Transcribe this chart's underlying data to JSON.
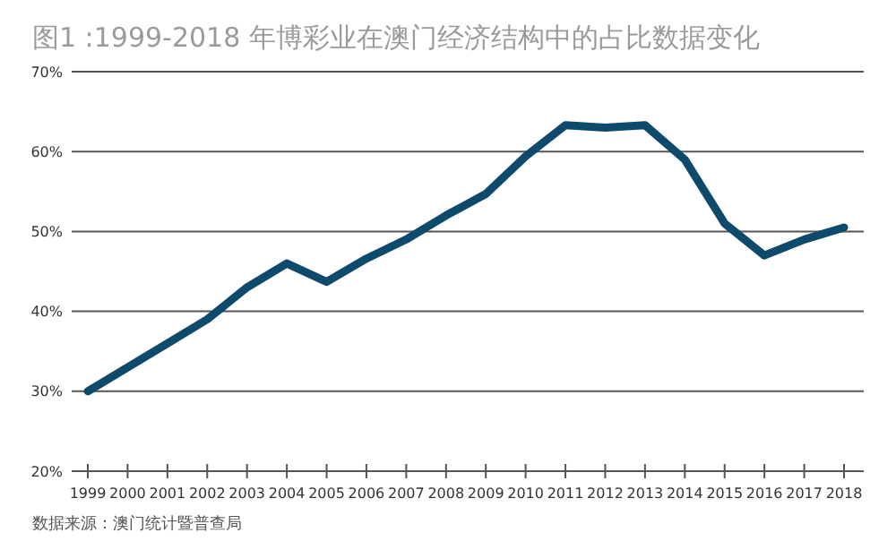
{
  "chart_data": {
    "type": "line",
    "title": "图1 :1999-2018 年博彩业在澳门经济结构中的占比数据变化",
    "categories": [
      "1999",
      "2000",
      "2001",
      "2002",
      "2003",
      "2004",
      "2005",
      "2006",
      "2007",
      "2008",
      "2009",
      "2010",
      "2011",
      "2012",
      "2013",
      "2014",
      "2015",
      "2016",
      "2017",
      "2018"
    ],
    "series": [
      {
        "color": "#0e4a6b",
        "values": [
          30,
          33,
          36,
          39,
          43,
          46,
          43.7,
          46.6,
          49,
          52,
          54.7,
          59.4,
          63.3,
          63,
          63.3,
          59,
          51,
          47,
          49,
          50.5
        ]
      }
    ],
    "ylim": [
      20,
      70
    ],
    "yticks": [
      {
        "value": 20,
        "label": "20%"
      },
      {
        "value": 30,
        "label": "30%"
      },
      {
        "value": 40,
        "label": "40%"
      },
      {
        "value": 50,
        "label": "50%"
      },
      {
        "value": 60,
        "label": "60%"
      },
      {
        "value": 70,
        "label": "70%"
      }
    ],
    "grid": "y",
    "marker": "none",
    "line_style": "solid",
    "annotations": [
      "数据来源：澳门统计暨普查局"
    ]
  }
}
